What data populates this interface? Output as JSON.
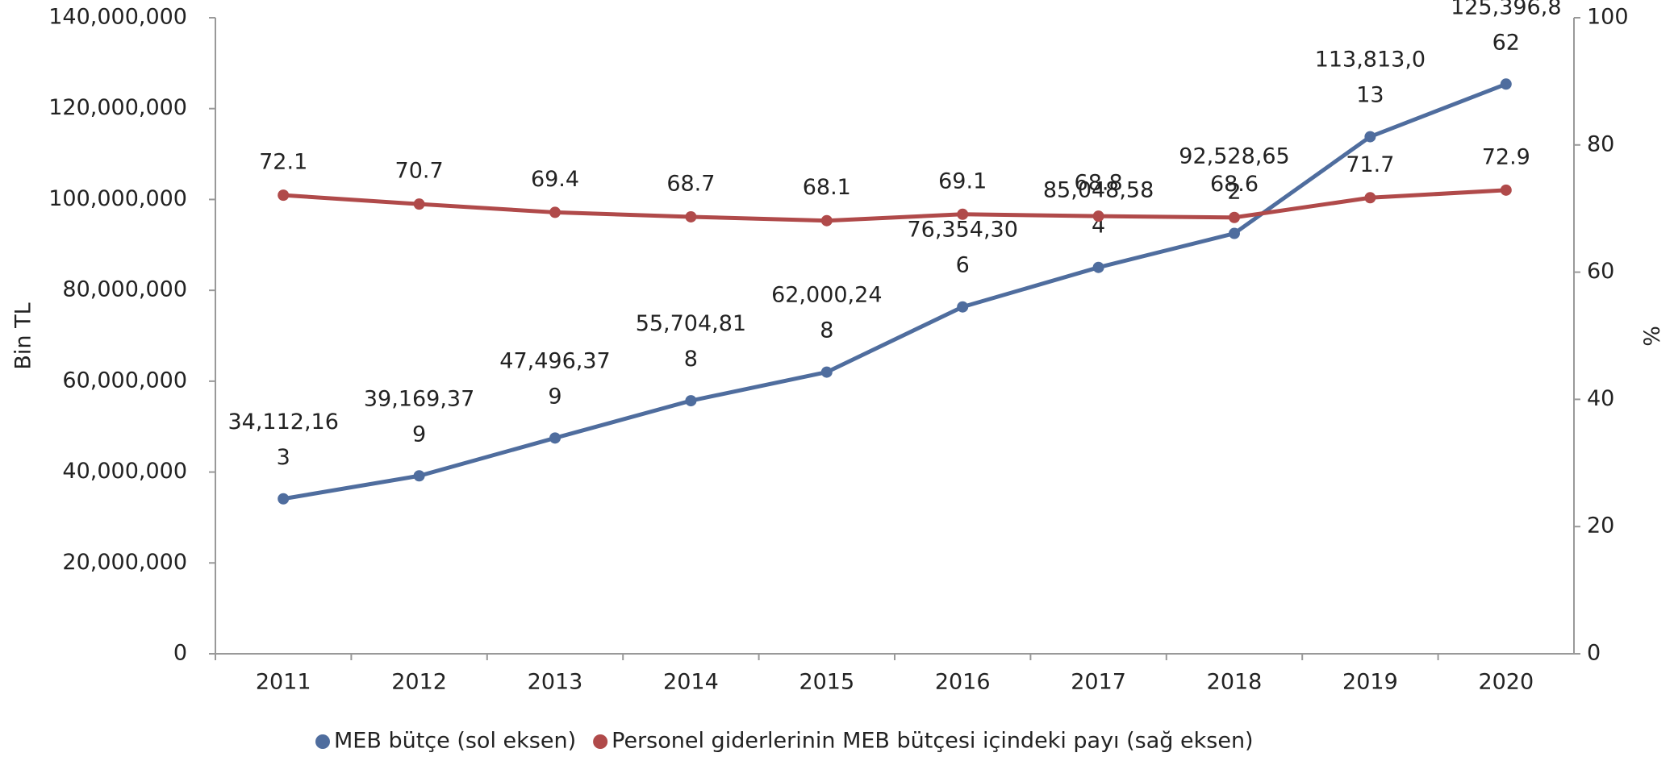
{
  "chart_data": {
    "type": "line",
    "categories": [
      "2011",
      "2012",
      "2013",
      "2014",
      "2015",
      "2016",
      "2017",
      "2018",
      "2019",
      "2020"
    ],
    "ylabel": "Bin TL",
    "y2label": "%",
    "ylim": [
      0,
      140000000
    ],
    "yticks": [
      0,
      {
        "value": 20000000,
        "label": "20,000,000"
      },
      {
        "value": 40000000,
        "label": "40,000,000"
      },
      {
        "value": 60000000,
        "label": "60,000,000"
      },
      {
        "value": 80000000,
        "label": "80,000,000"
      },
      {
        "value": 100000000,
        "label": "100,000,000"
      },
      {
        "value": 120000000,
        "label": "120,000,000"
      },
      {
        "value": 140000000,
        "label": "140,000,000"
      }
    ],
    "y2lim": [
      0,
      100
    ],
    "y2ticks": [
      0,
      20,
      40,
      60,
      80,
      100
    ],
    "legend": "bottom",
    "series": [
      {
        "name": "MEB bütçe (sol eksen)",
        "color": "#4f6d9e",
        "values": [
          34112163,
          39169379,
          47496379,
          55704818,
          62000248,
          76354306,
          85048584,
          92528652,
          113813013,
          125396862
        ],
        "value_labels": [
          "34,112,163",
          "39,169,379",
          "47,496,379",
          "55,704,818",
          "62,000,248",
          "76,354,306",
          "85,048,584",
          "92,528,652",
          "113,813,013",
          "125,396,862"
        ]
      },
      {
        "name": "Personel giderlerinin MEB bütçesi içindeki payı (sağ eksen)",
        "color": "#b04a4a",
        "axis": "y2",
        "values": [
          72.1,
          70.7,
          69.4,
          68.7,
          68.1,
          69.1,
          68.8,
          68.6,
          71.7,
          72.9
        ]
      }
    ]
  }
}
